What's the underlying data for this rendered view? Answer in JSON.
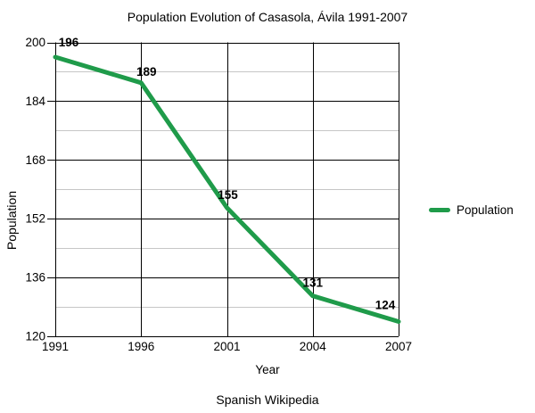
{
  "chart_data": {
    "type": "line",
    "title": "Population Evolution of Casasola, Ávila 1991-2007",
    "xlabel": "Year",
    "ylabel": "Population",
    "categories": [
      "1991",
      "1996",
      "2001",
      "2004",
      "2007"
    ],
    "series": [
      {
        "name": "Population",
        "values": [
          196,
          189,
          155,
          131,
          124
        ],
        "color": "#1f9b4a"
      }
    ],
    "ylim": [
      120,
      200
    ],
    "y_major_ticks": [
      120,
      136,
      152,
      168,
      184,
      200
    ],
    "y_minor_step": 8,
    "grid": "horizontal major black, horizontal minor light gray, vertical major black",
    "legend_position": "right",
    "data_labels": true
  },
  "footer": {
    "source": "Spanish Wikipedia"
  },
  "colors": {
    "line": "#1f9b4a",
    "major_grid": "#000000",
    "minor_grid": "#c6c6c6",
    "text": "#000000",
    "background": "#ffffff"
  }
}
